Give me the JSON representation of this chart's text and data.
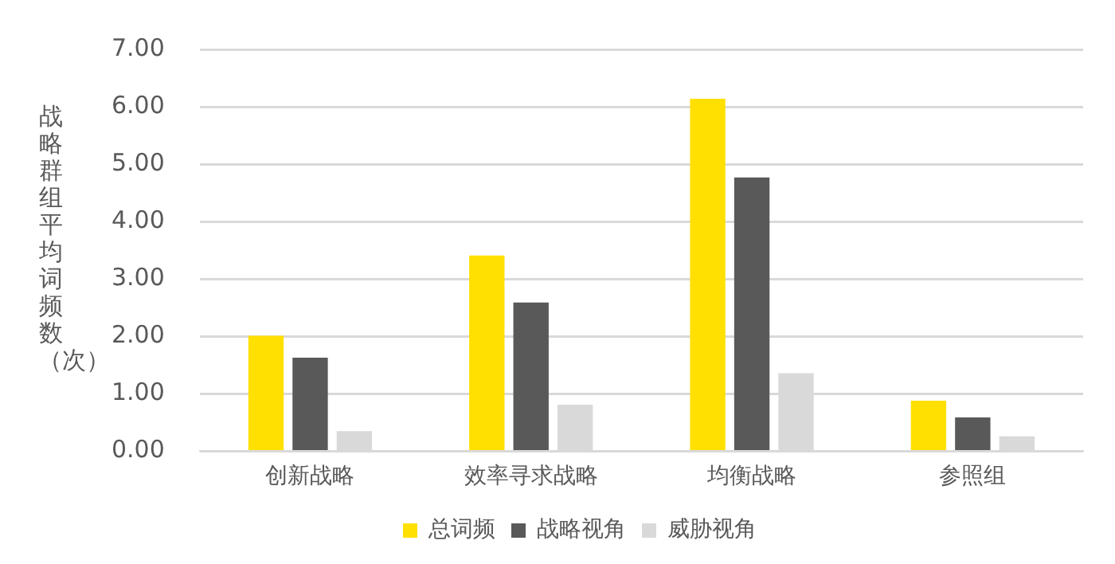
{
  "chart_data": {
    "type": "bar",
    "ylabel": "战略群组平均词频数（次）",
    "categories": [
      "创新战略",
      "效率寻求战略",
      "均衡战略",
      "参照组"
    ],
    "series": [
      {
        "name": "总词频",
        "color": "#ffe000",
        "values": [
          2.01,
          3.41,
          6.14,
          0.88
        ]
      },
      {
        "name": "战略视角",
        "color": "#595959",
        "values": [
          1.63,
          2.59,
          4.77,
          0.59
        ]
      },
      {
        "name": "威胁视角",
        "color": "#d9d9d9",
        "values": [
          0.35,
          0.81,
          1.36,
          0.26
        ]
      }
    ],
    "ylim": [
      0,
      7
    ],
    "yticks": [
      {
        "value": 0,
        "label": "0.00"
      },
      {
        "value": 1,
        "label": "1.00"
      },
      {
        "value": 2,
        "label": "2.00"
      },
      {
        "value": 3,
        "label": "3.00"
      },
      {
        "value": 4,
        "label": "4.00"
      },
      {
        "value": 5,
        "label": "5.00"
      },
      {
        "value": 6,
        "label": "6.00"
      },
      {
        "value": 7,
        "label": "7.00"
      }
    ],
    "grid": "y",
    "legend": "bottom"
  }
}
